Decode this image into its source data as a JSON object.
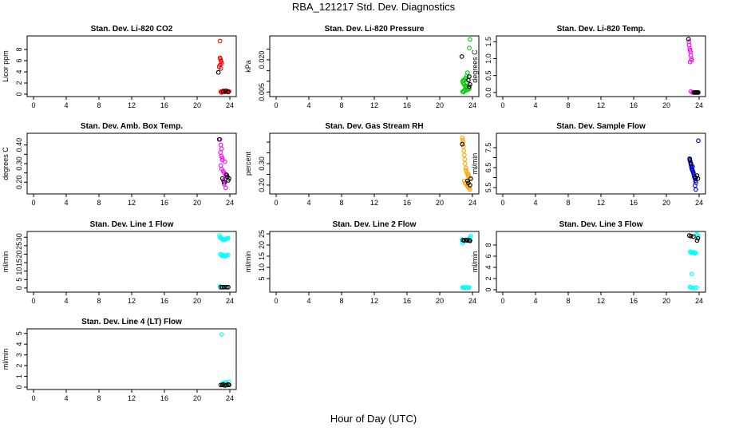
{
  "page": {
    "title": "RBA_121217  Std. Dev. Diagnostics",
    "xlabel": "Hour of Day (UTC)"
  },
  "colors": {
    "red": "#ff0000",
    "black": "#000000",
    "green": "#00cc00",
    "magenta": "#ff00ff",
    "orange": "#ffa500",
    "blue": "#0000cd",
    "cyan": "#00ffff"
  },
  "chart_data": [
    {
      "type": "scatter",
      "title": "Stan. Dev. Li-820 CO2",
      "ylabel": "Licor ppm",
      "xlim": [
        0,
        24
      ],
      "xticks": [
        0,
        4,
        8,
        12,
        16,
        20,
        24
      ],
      "ylim": [
        0,
        10
      ],
      "yticks": [
        0,
        2,
        4,
        6,
        8
      ],
      "series": [
        {
          "color": "red",
          "x": [
            22.8,
            22.8,
            22.85,
            22.9,
            22.95,
            23.0,
            22.8,
            22.7,
            22.9,
            23.0,
            23.1,
            23.2,
            23.3,
            23.4,
            23.5,
            23.6,
            23.7,
            23.8,
            23.9,
            23.0,
            22.9
          ],
          "y": [
            9.5,
            6.5,
            6.3,
            6.0,
            5.8,
            5.5,
            5.2,
            4.9,
            4.6,
            0.4,
            0.5,
            0.6,
            0.5,
            0.4,
            0.5,
            0.6,
            0.5,
            0.4,
            0.5,
            0.3,
            0.45
          ]
        },
        {
          "color": "black",
          "x": [
            22.6,
            23.2,
            23.5,
            23.8
          ],
          "y": [
            3.9,
            0.5,
            0.6,
            0.4
          ]
        }
      ]
    },
    {
      "type": "scatter",
      "title": "Stan. Dev. Li-820 Pressure",
      "ylabel": "kPa",
      "xlim": [
        0,
        24
      ],
      "xticks": [
        0,
        4,
        8,
        12,
        16,
        20,
        24
      ],
      "ylim": [
        0.004,
        0.03
      ],
      "yticks": [
        0.005,
        0.01,
        0.015,
        0.02,
        0.025
      ],
      "yticklabels": [
        "0.005",
        "",
        "",
        "0.020",
        ""
      ],
      "series": [
        {
          "color": "green",
          "x": [
            23.7,
            23.6,
            23.4,
            23.3,
            23.2,
            23.1,
            23.0,
            22.9,
            22.8,
            22.9,
            23.0,
            23.1,
            23.2,
            23.3,
            23.5,
            23.6,
            23.4,
            23.2,
            23.0,
            22.8,
            22.9,
            23.1,
            23.3
          ],
          "y": [
            0.0295,
            0.0255,
            0.014,
            0.0125,
            0.0115,
            0.011,
            0.0105,
            0.0105,
            0.01,
            0.009,
            0.0085,
            0.008,
            0.0075,
            0.0072,
            0.0068,
            0.0065,
            0.006,
            0.0058,
            0.0055,
            0.0052,
            0.005,
            0.0062,
            0.0095
          ]
        },
        {
          "color": "black",
          "x": [
            22.7,
            23.5,
            23.6,
            23.7,
            23.6
          ],
          "y": [
            0.0215,
            0.0105,
            0.0122,
            0.0085,
            0.0075
          ]
        }
      ]
    },
    {
      "type": "scatter",
      "title": "Stan. Dev. Li-820 Temp.",
      "ylabel": "degrees C",
      "xlim": [
        0,
        24
      ],
      "xticks": [
        0,
        4,
        8,
        12,
        16,
        20,
        24
      ],
      "ylim": [
        -0.05,
        1.6
      ],
      "yticks": [
        0.0,
        0.5,
        1.0,
        1.5
      ],
      "yticklabels": [
        "0.0",
        "0.5",
        "1.0",
        "1.5"
      ],
      "series": [
        {
          "color": "magenta",
          "x": [
            22.75,
            22.8,
            22.85,
            22.9,
            22.95,
            23.0,
            23.05,
            23.1,
            22.9,
            23.0,
            23.2,
            23.3
          ],
          "y": [
            1.5,
            1.4,
            1.3,
            1.25,
            1.2,
            1.1,
            1.0,
            0.95,
            0.9,
            0.03,
            0.0,
            0.0
          ]
        },
        {
          "color": "black",
          "x": [
            22.7,
            23.4,
            23.5,
            23.6,
            23.7,
            23.8,
            23.9
          ],
          "y": [
            1.58,
            0.0,
            0.0,
            0.0,
            0.0,
            0.0,
            0.0
          ]
        }
      ]
    },
    {
      "type": "scatter",
      "title": "Stan. Dev. Amb. Box Temp.",
      "ylabel": "degrees C",
      "xlim": [
        0,
        24
      ],
      "xticks": [
        0,
        4,
        8,
        12,
        16,
        20,
        24
      ],
      "ylim": [
        0.15,
        0.45
      ],
      "yticks": [
        0.2,
        0.25,
        0.3,
        0.35,
        0.4
      ],
      "yticklabels": [
        "0.20",
        "",
        "0.30",
        "",
        "0.40"
      ],
      "series": [
        {
          "color": "magenta",
          "x": [
            22.8,
            22.9,
            23.0,
            22.85,
            22.95,
            23.05,
            23.1,
            23.4,
            22.9,
            23.0,
            23.2,
            23.3,
            23.5,
            23.6,
            23.1,
            23.2,
            23.4,
            23.3,
            23.5
          ],
          "y": [
            0.43,
            0.4,
            0.38,
            0.36,
            0.34,
            0.33,
            0.32,
            0.31,
            0.29,
            0.27,
            0.26,
            0.25,
            0.24,
            0.23,
            0.22,
            0.21,
            0.2,
            0.19,
            0.17
          ]
        },
        {
          "color": "black",
          "x": [
            22.7,
            23.1,
            23.3,
            23.6,
            23.7,
            23.8,
            23.9
          ],
          "y": [
            0.43,
            0.22,
            0.2,
            0.24,
            0.23,
            0.21,
            0.22
          ]
        }
      ]
    },
    {
      "type": "scatter",
      "title": "Stan. Dev. Gas Stream RH",
      "ylabel": "percent",
      "xlim": [
        0,
        24
      ],
      "xticks": [
        0,
        4,
        8,
        12,
        16,
        20,
        24
      ],
      "ylim": [
        0.17,
        0.43
      ],
      "yticks": [
        0.2,
        0.25,
        0.3,
        0.35,
        0.4
      ],
      "yticklabels": [
        "0.20",
        "",
        "0.30",
        "",
        ""
      ],
      "series": [
        {
          "color": "orange",
          "x": [
            22.75,
            22.8,
            22.85,
            22.9,
            22.95,
            23.0,
            23.05,
            23.1,
            23.2,
            23.3,
            23.4,
            23.5,
            23.6,
            23.0,
            23.1,
            23.2,
            23.3,
            23.4,
            23.5,
            23.6,
            23.7,
            23.2,
            23.4,
            23.5
          ],
          "y": [
            0.42,
            0.41,
            0.4,
            0.38,
            0.36,
            0.34,
            0.32,
            0.3,
            0.28,
            0.26,
            0.25,
            0.24,
            0.23,
            0.22,
            0.21,
            0.205,
            0.2,
            0.195,
            0.19,
            0.185,
            0.18,
            0.27,
            0.22,
            0.25
          ]
        },
        {
          "color": "black",
          "x": [
            22.75,
            23.4,
            23.5,
            23.7,
            23.8
          ],
          "y": [
            0.39,
            0.22,
            0.21,
            0.2,
            0.23
          ]
        }
      ]
    },
    {
      "type": "scatter",
      "title": "Stan. Dev. Sample Flow",
      "ylabel": "ml/min",
      "xlim": [
        0,
        24
      ],
      "xticks": [
        0,
        4,
        8,
        12,
        16,
        20,
        24
      ],
      "ylim": [
        5.3,
        8.1
      ],
      "yticks": [
        5.5,
        6.0,
        6.5,
        7.0,
        7.5
      ],
      "yticklabels": [
        "5.5",
        "",
        "6.5",
        "",
        "7.5"
      ],
      "series": [
        {
          "color": "blue",
          "x": [
            23.9,
            22.85,
            22.9,
            22.95,
            23.0,
            23.05,
            23.1,
            23.15,
            23.2,
            23.25,
            23.3,
            23.35,
            23.4,
            23.45,
            23.5,
            23.55,
            23.6,
            23.2,
            23.5,
            23.6
          ],
          "y": [
            7.85,
            6.95,
            6.85,
            6.75,
            6.65,
            6.55,
            6.45,
            6.4,
            6.35,
            6.3,
            6.25,
            6.15,
            6.05,
            6.0,
            5.95,
            5.85,
            5.75,
            6.55,
            5.6,
            5.4
          ]
        },
        {
          "color": "black",
          "x": [
            22.85,
            23.0,
            23.6,
            23.75,
            23.85
          ],
          "y": [
            6.9,
            6.7,
            6.0,
            6.1,
            5.95
          ]
        }
      ]
    },
    {
      "type": "scatter",
      "title": "Stan. Dev. Line 1 Flow",
      "ylabel": "ml/min",
      "xlim": [
        0,
        24
      ],
      "xticks": [
        0,
        4,
        8,
        12,
        16,
        20,
        24
      ],
      "ylim": [
        -1,
        32
      ],
      "yticks": [
        0,
        5,
        10,
        15,
        20,
        25,
        30
      ],
      "series": [
        {
          "color": "cyan",
          "x": [
            22.75,
            22.8,
            22.9,
            23.0,
            23.1,
            23.2,
            23.3,
            23.4,
            23.5,
            23.6,
            23.7,
            23.8,
            22.85,
            22.95,
            23.05,
            23.15,
            23.25,
            23.35,
            23.45,
            23.55,
            23.65,
            23.8,
            22.8,
            23.0,
            23.4
          ],
          "y": [
            31,
            30,
            29.5,
            29,
            28.8,
            28.5,
            28.6,
            28.7,
            28.9,
            29.0,
            29.2,
            29.5,
            20,
            19.5,
            19,
            19.2,
            19.4,
            19,
            18.8,
            19.1,
            19.3,
            19.5,
            1,
            0.5,
            0.6
          ]
        },
        {
          "color": "black",
          "x": [
            22.9,
            23.1,
            23.3,
            23.6,
            23.8
          ],
          "y": [
            0.5,
            0.5,
            0.5,
            0.5,
            0.5
          ]
        }
      ]
    },
    {
      "type": "scatter",
      "title": "Stan. Dev. Line 2 Flow",
      "ylabel": "ml/min",
      "xlim": [
        0,
        24
      ],
      "xticks": [
        0,
        4,
        8,
        12,
        16,
        20,
        24
      ],
      "ylim": [
        0,
        25
      ],
      "yticks": [
        5,
        10,
        15,
        20,
        25
      ],
      "series": [
        {
          "color": "cyan",
          "x": [
            22.7,
            22.8,
            23.6,
            23.7,
            23.8,
            22.8,
            22.9,
            23.0,
            23.1,
            23.2,
            23.3,
            23.4,
            23.5,
            23.6,
            23.5,
            23.7,
            22.8
          ],
          "y": [
            22.5,
            21.5,
            23.0,
            23.5,
            24.0,
            1,
            1,
            1,
            1,
            1,
            1,
            1,
            1,
            1,
            22.5,
            22.0,
            20.8
          ]
        },
        {
          "color": "black",
          "x": [
            22.85,
            23.0,
            23.2,
            23.4,
            23.6,
            23.7
          ],
          "y": [
            22.2,
            22.0,
            22.3,
            22.0,
            22.1,
            21.9
          ]
        }
      ]
    },
    {
      "type": "scatter",
      "title": "Stan. Dev. Line 3 Flow",
      "ylabel": "ml/min",
      "xlim": [
        0,
        24
      ],
      "xticks": [
        0,
        4,
        8,
        12,
        16,
        20,
        24
      ],
      "ylim": [
        0,
        10
      ],
      "yticks": [
        0,
        2,
        4,
        6,
        8
      ],
      "series": [
        {
          "color": "cyan",
          "x": [
            23.7,
            23.8,
            23.9,
            22.9,
            23.0,
            23.1,
            23.2,
            23.3,
            23.4,
            23.5,
            23.6,
            22.9,
            23.0,
            23.2,
            23.5,
            23.7,
            23.1
          ],
          "y": [
            9.9,
            9.8,
            9.6,
            6.8,
            6.7,
            6.6,
            6.6,
            6.7,
            6.6,
            6.5,
            6.6,
            0.5,
            0.4,
            0.3,
            0.3,
            0.4,
            2.8
          ]
        },
        {
          "color": "black",
          "x": [
            22.8,
            23.0,
            23.3,
            23.75,
            23.85
          ],
          "y": [
            9.7,
            9.6,
            9.5,
            8.8,
            9.2
          ]
        }
      ]
    },
    {
      "type": "scatter",
      "title": "Stan. Dev. Line 4 (LT) Flow",
      "ylabel": "ml/min",
      "xlim": [
        0,
        24
      ],
      "xticks": [
        0,
        4,
        8,
        12,
        16,
        20,
        24
      ],
      "ylim": [
        0,
        5.2
      ],
      "yticks": [
        0,
        1,
        2,
        3,
        4,
        5
      ],
      "series": [
        {
          "color": "cyan",
          "x": [
            23.0,
            23.1,
            23.3,
            23.5,
            23.7,
            23.9,
            23.2,
            23.4
          ],
          "y": [
            4.9,
            0.35,
            0.4,
            0.45,
            0.3,
            0.5,
            0.2,
            0.3
          ]
        },
        {
          "color": "black",
          "x": [
            22.9,
            23.1,
            23.2,
            23.4,
            23.6,
            23.8,
            23.9
          ],
          "y": [
            0.2,
            0.2,
            0.25,
            0.15,
            0.2,
            0.25,
            0.2
          ]
        }
      ]
    }
  ]
}
